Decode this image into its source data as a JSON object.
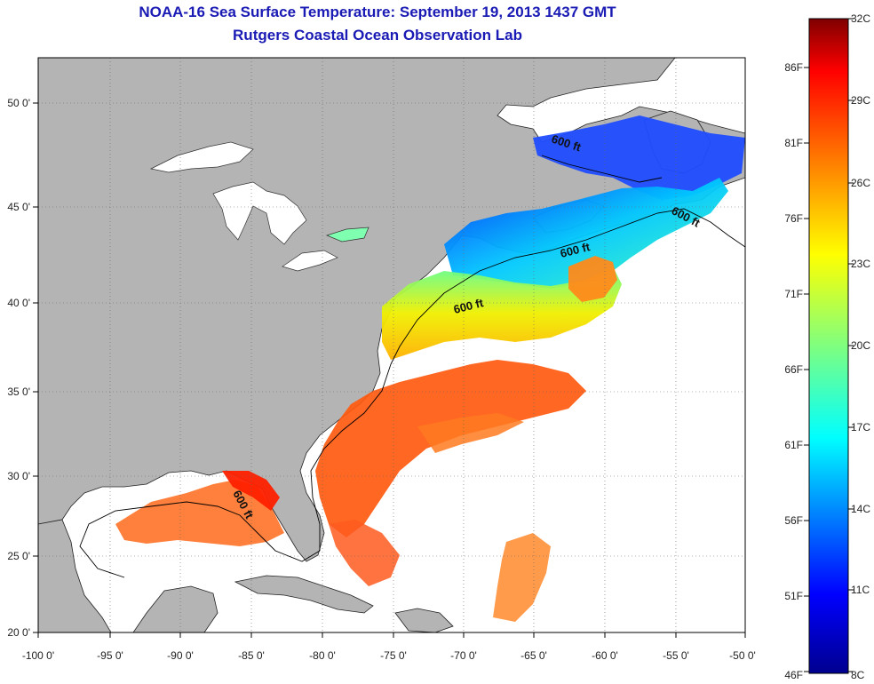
{
  "header": {
    "title": "NOAA-16 Sea Surface Temperature:  September 19, 2013 1437 GMT",
    "subtitle": "Rutgers Coastal Ocean Observation Lab"
  },
  "axes": {
    "lon_ticks": [
      "-100 0'",
      "-95 0'",
      "-90 0'",
      "-85 0'",
      "-80 0'",
      "-75 0'",
      "-70 0'",
      "-65 0'",
      "-60 0'",
      "-55 0'",
      "-50 0'"
    ],
    "lat_ticks": [
      "20 0'",
      "25 0'",
      "30 0'",
      "35 0'",
      "40 0'",
      "45 0'",
      "50 0'"
    ]
  },
  "contour_labels": [
    "600 ft",
    "600 ft",
    "600 ft",
    "600 ft",
    "600 ft"
  ],
  "colorbar": {
    "celsius": [
      "32C",
      "29C",
      "26C",
      "23C",
      "20C",
      "17C",
      "14C",
      "11C",
      "8C"
    ],
    "fahrenheit": [
      "86F",
      "81F",
      "76F",
      "71F",
      "66F",
      "61F",
      "56F",
      "51F",
      "46F"
    ],
    "colors": [
      "#7f0000",
      "#ff0000",
      "#ff7f00",
      "#ffff00",
      "#7fff7f",
      "#00ffff",
      "#007fff",
      "#0000ff",
      "#00008f"
    ]
  },
  "colors": {
    "land": "#b4b4b4",
    "ocean_background": "#ffffff",
    "title_text": "#1a1ab5"
  }
}
